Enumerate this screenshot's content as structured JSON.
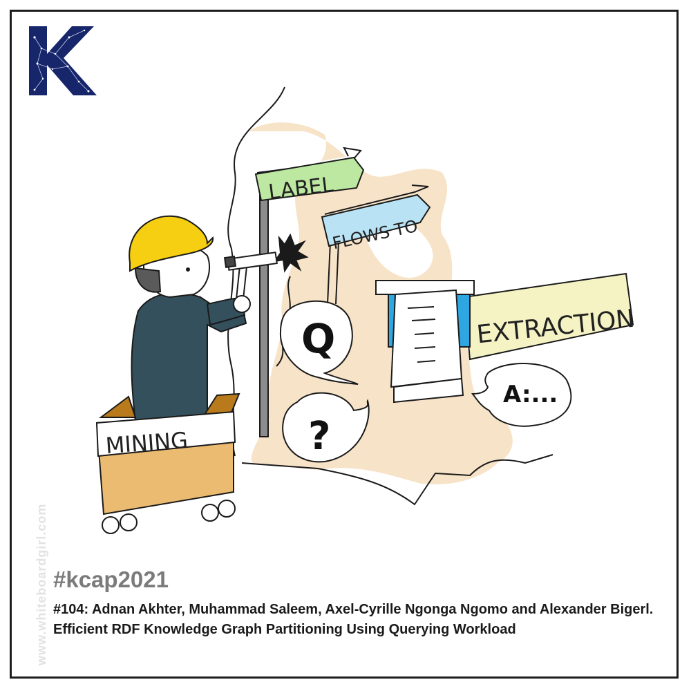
{
  "logo": {
    "letter": "K",
    "color": "#17256b"
  },
  "signs": {
    "label": "LABEL",
    "flows_to": "FLOWS TO",
    "extraction": "EXTRACTION",
    "mining": "MINING"
  },
  "bubbles": {
    "q": "Q",
    "question": "?",
    "answer": "A:..."
  },
  "watermark": "www.whiteboardgirl.com",
  "hashtag": "#kcap2021",
  "citation": "#104: Adnan Akhter, Muhammad Saleem, Axel-Cyrille Ngonga Ngomo and Alexander Bigerl. Efficient RDF Knowledge Graph Partitioning Using Querying Workload",
  "colors": {
    "helmet": "#f6cf12",
    "shirt": "#34505c",
    "box": "#ebbb72",
    "background_blob": "#f7e3c8",
    "sign_label": "#bde8a2",
    "sign_flows": "#b9e2f4",
    "sign_extraction": "#f5f3c4",
    "document_tab": "#2ea6e2"
  }
}
